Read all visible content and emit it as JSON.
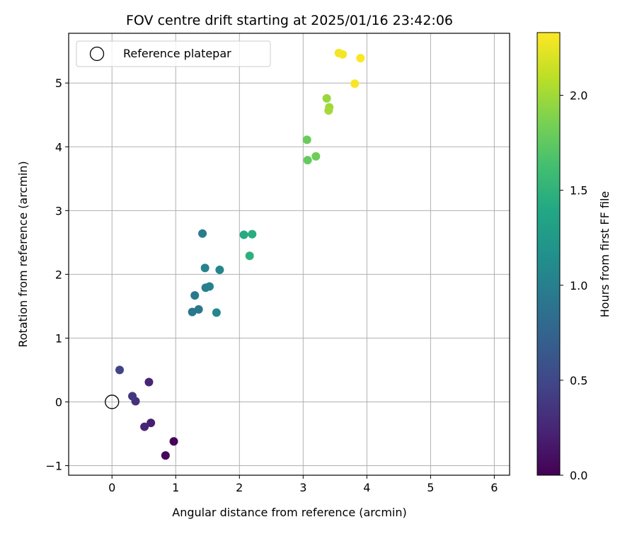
{
  "chart_data": {
    "type": "scatter",
    "title": "FOV centre drift starting at 2025/01/16 23:42:06",
    "xlabel": "Angular distance from reference (arcmin)",
    "ylabel": "Rotation from reference (arcmin)",
    "xlim": [
      -0.68,
      6.24
    ],
    "ylim": [
      -1.15,
      5.78
    ],
    "xticks": [
      0,
      1,
      2,
      3,
      4,
      5,
      6
    ],
    "xtick_labels": [
      "0",
      "1",
      "2",
      "3",
      "4",
      "5",
      "6"
    ],
    "yticks": [
      -1,
      0,
      1,
      2,
      3,
      4,
      5
    ],
    "ytick_labels": [
      "−1",
      "0",
      "1",
      "2",
      "3",
      "4",
      "5"
    ],
    "grid": true,
    "legend": {
      "placement": "upper-left",
      "entries": [
        "Reference platepar"
      ]
    },
    "reference_point": {
      "name": "Reference platepar",
      "x": 0,
      "y": 0
    },
    "colorbar": {
      "label": "Hours from first FF file",
      "range": [
        0,
        2.33
      ],
      "ticks": [
        0,
        0.5,
        1.0,
        1.5,
        2.0
      ],
      "tick_labels": [
        "0.0",
        "0.5",
        "1.0",
        "1.5",
        "2.0"
      ],
      "colormap": "viridis"
    },
    "points": [
      {
        "x": 0.97,
        "y": -0.62,
        "c": 0.02
      },
      {
        "x": 0.84,
        "y": -0.84,
        "c": 0.05
      },
      {
        "x": 0.61,
        "y": -0.33,
        "c": 0.2
      },
      {
        "x": 0.51,
        "y": -0.39,
        "c": 0.23
      },
      {
        "x": 0.58,
        "y": 0.31,
        "c": 0.25
      },
      {
        "x": 0.37,
        "y": 0.01,
        "c": 0.33
      },
      {
        "x": 0.32,
        "y": 0.09,
        "c": 0.37
      },
      {
        "x": 0.12,
        "y": 0.5,
        "c": 0.47
      },
      {
        "x": 1.26,
        "y": 1.41,
        "c": 0.9
      },
      {
        "x": 1.36,
        "y": 1.45,
        "c": 0.92
      },
      {
        "x": 1.3,
        "y": 1.67,
        "c": 0.95
      },
      {
        "x": 1.42,
        "y": 2.64,
        "c": 0.97
      },
      {
        "x": 1.47,
        "y": 1.79,
        "c": 0.99
      },
      {
        "x": 1.53,
        "y": 1.81,
        "c": 1.01
      },
      {
        "x": 1.46,
        "y": 2.1,
        "c": 1.03
      },
      {
        "x": 1.69,
        "y": 2.07,
        "c": 1.05
      },
      {
        "x": 1.64,
        "y": 1.4,
        "c": 1.06
      },
      {
        "x": 2.07,
        "y": 2.62,
        "c": 1.42
      },
      {
        "x": 2.2,
        "y": 2.63,
        "c": 1.45
      },
      {
        "x": 2.16,
        "y": 2.29,
        "c": 1.48
      },
      {
        "x": 3.07,
        "y": 3.79,
        "c": 1.77
      },
      {
        "x": 3.06,
        "y": 4.11,
        "c": 1.79
      },
      {
        "x": 3.2,
        "y": 3.85,
        "c": 1.81
      },
      {
        "x": 3.37,
        "y": 4.76,
        "c": 1.97
      },
      {
        "x": 3.41,
        "y": 4.62,
        "c": 1.99
      },
      {
        "x": 3.4,
        "y": 4.57,
        "c": 2.01
      },
      {
        "x": 3.56,
        "y": 5.47,
        "c": 2.29
      },
      {
        "x": 3.62,
        "y": 5.45,
        "c": 2.3
      },
      {
        "x": 3.81,
        "y": 4.99,
        "c": 2.31
      },
      {
        "x": 3.9,
        "y": 5.39,
        "c": 2.32
      }
    ]
  }
}
